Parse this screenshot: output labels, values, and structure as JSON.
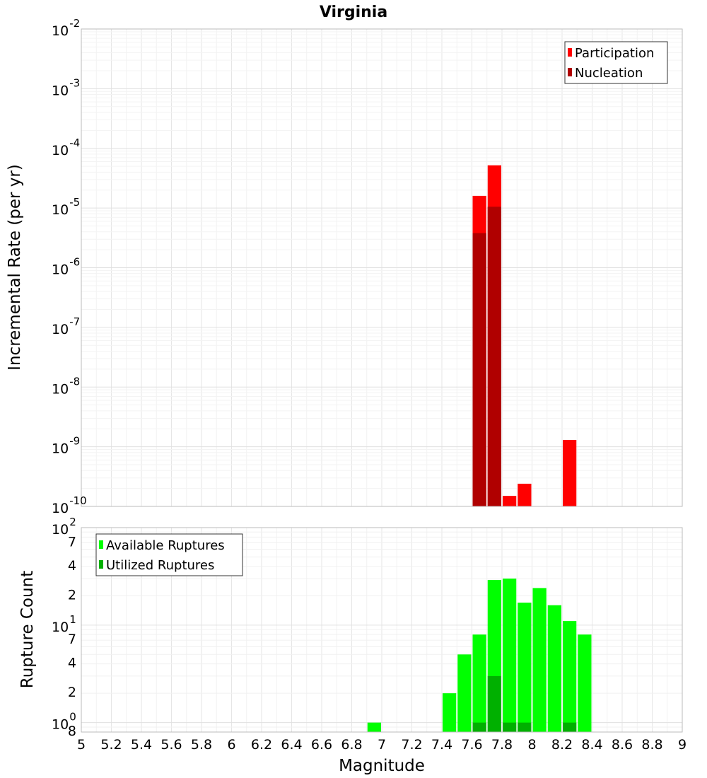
{
  "title": "Virginia",
  "chart_data": [
    {
      "type": "bar",
      "panel": "top",
      "ylabel": "Incremental Rate (per yr)",
      "yscale": "log",
      "ylim": [
        1e-10,
        0.01
      ],
      "y_tick_exponents": [
        "-10",
        "-9",
        "-8",
        "-7",
        "-6",
        "-5",
        "-4",
        "-3",
        "-2"
      ],
      "xlim": [
        5,
        9
      ],
      "bin_width": 0.1,
      "legend": {
        "position": "top-right"
      },
      "grid": true,
      "series": [
        {
          "name": "Participation",
          "color": "#ff0000",
          "points": [
            {
              "x": 7.65,
              "y": 1.6e-05
            },
            {
              "x": 7.75,
              "y": 5.2e-05
            },
            {
              "x": 7.85,
              "y": 1.5e-10
            },
            {
              "x": 7.95,
              "y": 2.4e-10
            },
            {
              "x": 8.25,
              "y": 1.3e-09
            }
          ]
        },
        {
          "name": "Nucleation",
          "color": "#b00000",
          "points": [
            {
              "x": 7.65,
              "y": 3.8e-06
            },
            {
              "x": 7.75,
              "y": 1.05e-05
            }
          ]
        }
      ]
    },
    {
      "type": "bar",
      "panel": "bottom",
      "ylabel": "Rupture Count",
      "yscale": "log",
      "ylim": [
        0.8,
        100
      ],
      "y_ticks": [
        {
          "value": 0.8,
          "label": "8",
          "exp": ""
        },
        {
          "value": 1,
          "label": "10",
          "exp": "0"
        },
        {
          "value": 2,
          "label": "2",
          "exp": ""
        },
        {
          "value": 4,
          "label": "4",
          "exp": ""
        },
        {
          "value": 7,
          "label": "7",
          "exp": ""
        },
        {
          "value": 10,
          "label": "10",
          "exp": "1"
        },
        {
          "value": 20,
          "label": "2",
          "exp": ""
        },
        {
          "value": 40,
          "label": "4",
          "exp": ""
        },
        {
          "value": 70,
          "label": "7",
          "exp": ""
        },
        {
          "value": 100,
          "label": "10",
          "exp": "2"
        }
      ],
      "xlim": [
        5,
        9
      ],
      "bin_width": 0.1,
      "xlabel": "Magnitude",
      "x_ticks": [
        "5",
        "5.2",
        "5.4",
        "5.6",
        "5.8",
        "6",
        "6.2",
        "6.4",
        "6.6",
        "6.8",
        "7",
        "7.2",
        "7.4",
        "7.6",
        "7.8",
        "8",
        "8.2",
        "8.4",
        "8.6",
        "8.8",
        "9"
      ],
      "legend": {
        "position": "top-left"
      },
      "grid": true,
      "series": [
        {
          "name": "Available Ruptures",
          "color": "#00ff00",
          "points": [
            {
              "x": 6.95,
              "y": 1
            },
            {
              "x": 7.45,
              "y": 2
            },
            {
              "x": 7.55,
              "y": 5
            },
            {
              "x": 7.65,
              "y": 8
            },
            {
              "x": 7.75,
              "y": 29
            },
            {
              "x": 7.85,
              "y": 30
            },
            {
              "x": 7.95,
              "y": 17
            },
            {
              "x": 8.05,
              "y": 24
            },
            {
              "x": 8.15,
              "y": 16
            },
            {
              "x": 8.25,
              "y": 11
            },
            {
              "x": 8.35,
              "y": 8
            }
          ]
        },
        {
          "name": "Utilized Ruptures",
          "color": "#00b000",
          "points": [
            {
              "x": 7.65,
              "y": 1
            },
            {
              "x": 7.75,
              "y": 3
            },
            {
              "x": 7.85,
              "y": 1
            },
            {
              "x": 7.95,
              "y": 1
            },
            {
              "x": 8.25,
              "y": 1
            }
          ]
        }
      ]
    }
  ]
}
